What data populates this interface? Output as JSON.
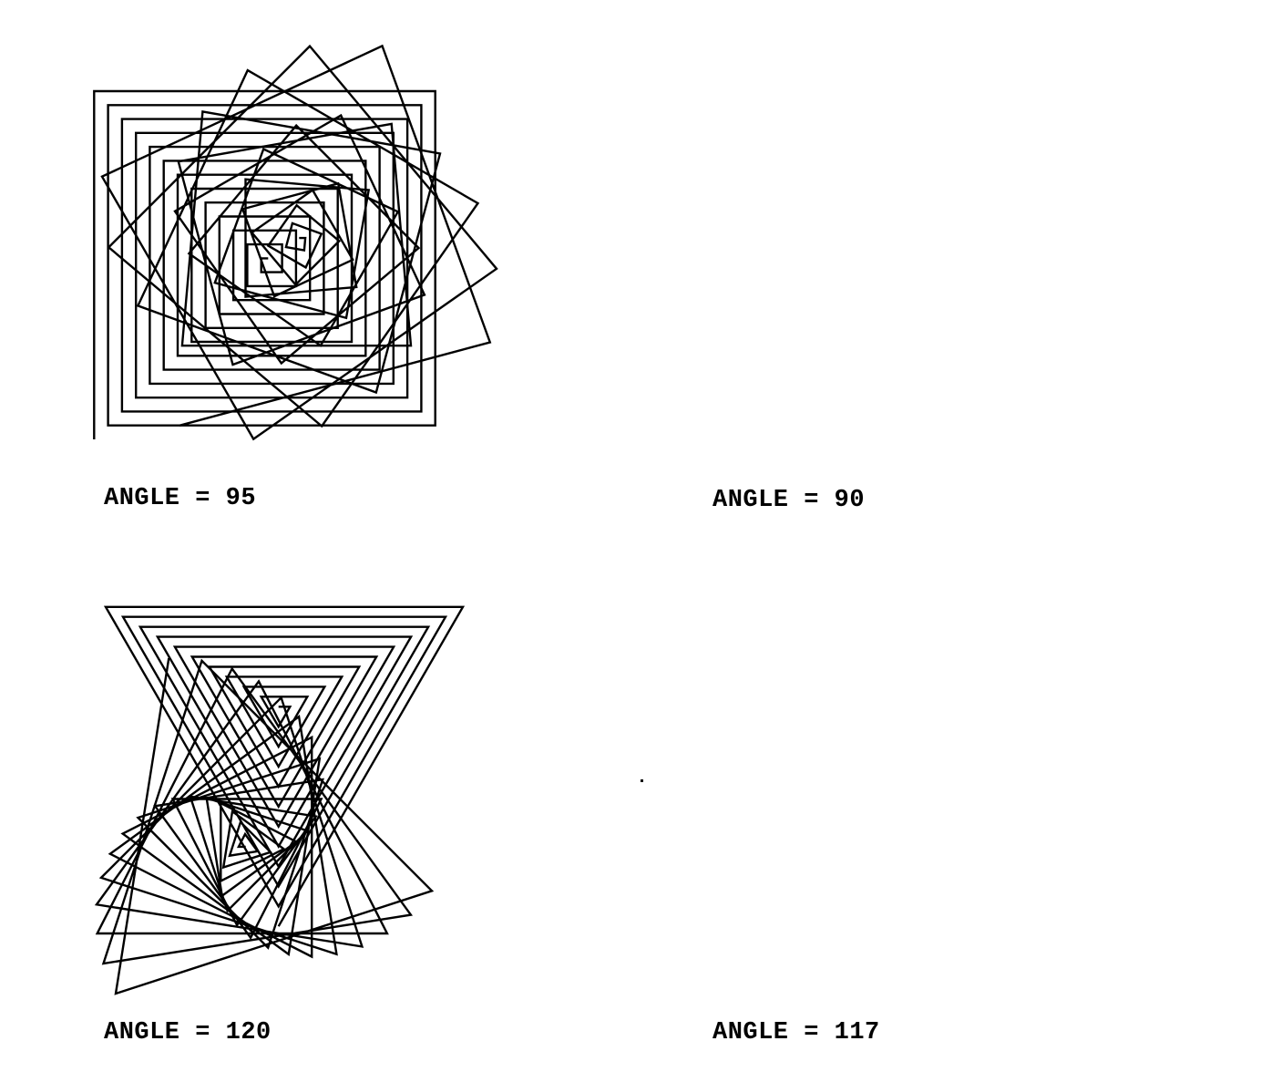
{
  "figures": [
    {
      "id": "angle-95",
      "angle": 95,
      "steps": 52,
      "caption": "ANGLE = 95"
    },
    {
      "id": "angle-90",
      "angle": 90,
      "steps": 50,
      "caption": "ANGLE = 90"
    },
    {
      "id": "angle-120",
      "angle": 120,
      "steps": 32,
      "caption": "ANGLE = 120"
    },
    {
      "id": "angle-117",
      "angle": 117,
      "steps": 48,
      "caption": "ANGLE = 117"
    }
  ],
  "colors": {
    "stroke": "#000000",
    "background": "#ffffff"
  }
}
